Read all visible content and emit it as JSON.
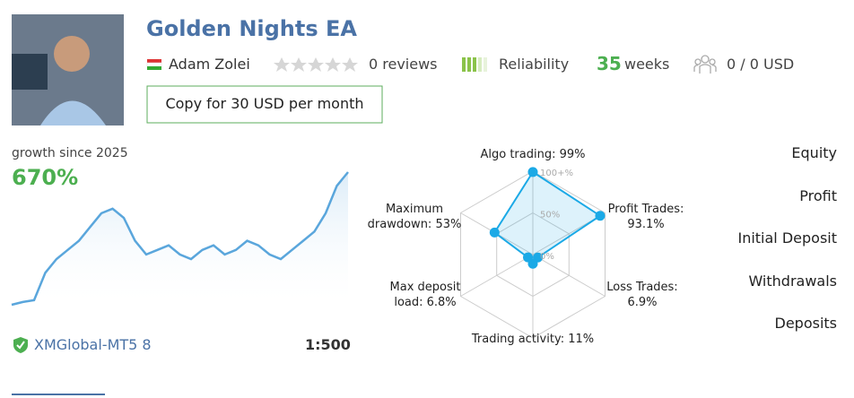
{
  "profile": {
    "title": "Golden Nights EA",
    "author": "Adam Zolei",
    "reviews": "0 reviews",
    "reliability": "Reliability",
    "weeks_value": "35",
    "weeks_unit": "weeks",
    "subscribers": "0 / 0 USD",
    "copy_button": "Copy for 30 USD per month"
  },
  "growth": {
    "label": "growth since 2025",
    "value": "670%",
    "broker": "XMGlobal-MT5 8",
    "leverage": "1:500"
  },
  "chart_data": [
    {
      "type": "line",
      "color": "#5aa6dc",
      "values": [
        5,
        8,
        10,
        40,
        55,
        65,
        75,
        90,
        105,
        110,
        100,
        75,
        60,
        65,
        70,
        60,
        55,
        65,
        70,
        60,
        65,
        75,
        70,
        60,
        55,
        65,
        75,
        85,
        105,
        135,
        150
      ]
    },
    {
      "type": "radar",
      "color": "#1ba9e6",
      "labels": [
        [
          "Algo trading: 99%"
        ],
        [
          "Profit Trades:",
          "93.1%"
        ],
        [
          "Loss Trades:",
          "6.9%"
        ],
        [
          "Trading activity: 11%"
        ],
        [
          "Max deposit",
          "load: 6.8%"
        ],
        [
          "Maximum",
          "drawdown: 53%"
        ]
      ],
      "values": [
        99,
        93.1,
        6.9,
        11,
        6.8,
        53
      ],
      "rlim": [
        0,
        100
      ],
      "rticks": [
        {
          "value": 0,
          "label": "0%"
        },
        {
          "value": 50,
          "label": "50%"
        },
        {
          "value": 100,
          "label": "100+%"
        }
      ]
    }
  ],
  "tabs": [
    "Equity",
    "Profit",
    "Initial Deposit",
    "Withdrawals",
    "Deposits"
  ]
}
